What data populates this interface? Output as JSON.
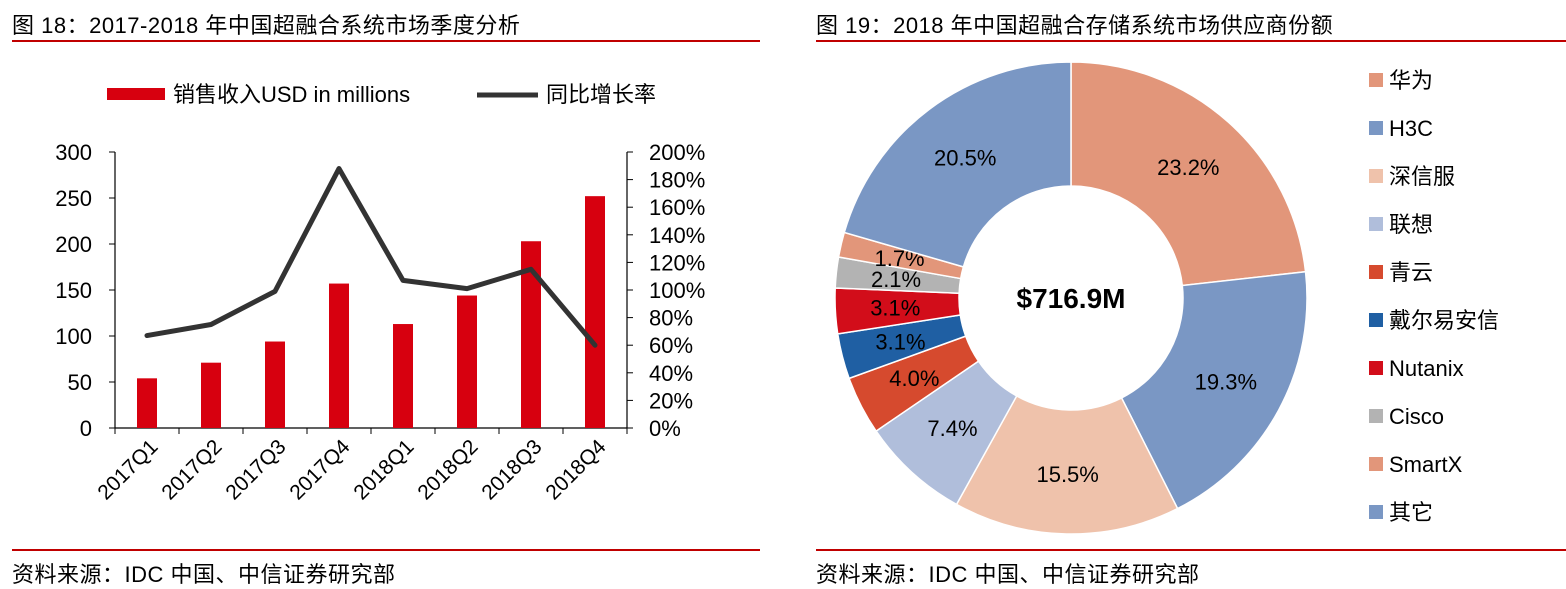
{
  "left_panel": {
    "figure_title": "图 18：2017-2018 年中国超融合系统市场季度分析",
    "source": "资料来源：IDC 中国、中信证券研究部"
  },
  "right_panel": {
    "figure_title": "图 19：2018 年中国超融合存储系统市场供应商份额",
    "source": "资料来源：IDC 中国、中信证券研究部"
  },
  "chart_data": [
    {
      "type": "bar",
      "title": "2017-2018 年中国超融合系统市场季度分析",
      "categories": [
        "2017Q1",
        "2017Q2",
        "2017Q3",
        "2017Q4",
        "2018Q1",
        "2018Q2",
        "2018Q3",
        "2018Q4"
      ],
      "series": [
        {
          "name": "销售收入USD in millions",
          "type": "bar",
          "axis": "left",
          "color": "#d7000f",
          "values": [
            54,
            71,
            94,
            157,
            113,
            144,
            203,
            252
          ]
        },
        {
          "name": "同比增长率",
          "type": "line",
          "axis": "right",
          "color": "#333333",
          "values": [
            67,
            75,
            99,
            188,
            107,
            101,
            115,
            60
          ]
        }
      ],
      "y_left": {
        "min": 0,
        "max": 300,
        "ticks": [
          "0",
          "50",
          "100",
          "150",
          "200",
          "250",
          "300"
        ]
      },
      "y_right": {
        "min": 0,
        "max": 200,
        "ticks": [
          "0%",
          "20%",
          "40%",
          "60%",
          "80%",
          "100%",
          "120%",
          "140%",
          "160%",
          "180%",
          "200%"
        ]
      },
      "legend_position": "top",
      "grid": false
    },
    {
      "type": "pie",
      "title": "2018 年中国超融合存储系统市场供应商份额",
      "center_label": "$716.9M",
      "slices": [
        {
          "label": "华为",
          "value": 23.2,
          "display": "23.2%",
          "color": "#e2967a"
        },
        {
          "label": "H3C",
          "value": 19.3,
          "display": "19.3%",
          "color": "#7a97c4"
        },
        {
          "label": "深信服",
          "value": 15.5,
          "display": "15.5%",
          "color": "#efc2ab"
        },
        {
          "label": "联想",
          "value": 7.4,
          "display": "7.4%",
          "color": "#b0bedb"
        },
        {
          "label": "青云",
          "value": 4.0,
          "display": "4.0%",
          "color": "#d64a2e"
        },
        {
          "label": "戴尔易安信",
          "value": 3.1,
          "display": "3.1%",
          "color": "#1f5fa3"
        },
        {
          "label": "Nutanix",
          "value": 3.1,
          "display": "3.1%",
          "color": "#d20d1a"
        },
        {
          "label": "Cisco",
          "value": 2.1,
          "display": "2.1%",
          "color": "#b3b3b3"
        },
        {
          "label": "SmartX",
          "value": 1.7,
          "display": "1.7%",
          "color": "#e2967a"
        },
        {
          "label": "其它",
          "value": 20.5,
          "display": "20.5%",
          "color": "#7a97c4"
        }
      ],
      "legend_position": "right"
    }
  ]
}
